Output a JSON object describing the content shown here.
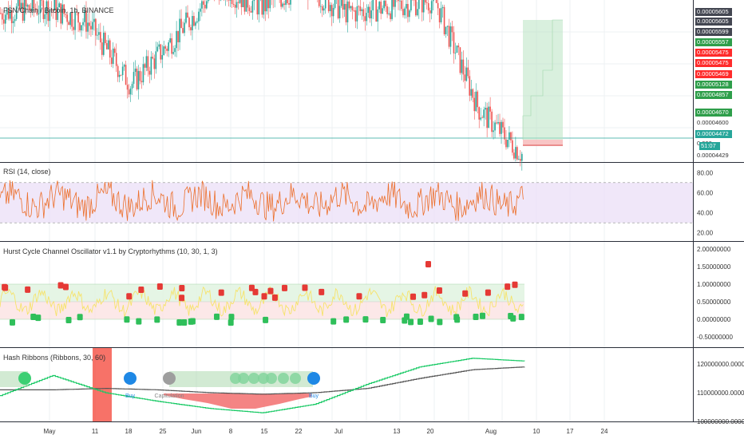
{
  "colors": {
    "bull": "#26a69a",
    "bear": "#ef5350",
    "rsi_line": "#ec6f2b",
    "rsi_band": "#e9ddf7",
    "grid": "#eef0f3",
    "separator": "#2a2e39",
    "hash_fast": "#17c964",
    "hash_slow": "#555555",
    "hash_fill": "#f26f6f",
    "buy_circle": "#1e88e5",
    "green_circle": "#3ccf73",
    "grey_circle": "#9e9e9e",
    "capitulation_red": "#f44336"
  },
  "main_pane": {
    "title": "FSN/Chain / Bitcoin, 1h, BINANCE",
    "price_tags": [
      {
        "label": "0.00005605",
        "bg": "#434651"
      },
      {
        "label": "0.00005605",
        "bg": "#434651"
      },
      {
        "label": "0.00005599",
        "bg": "#434651"
      },
      {
        "label": "0.00005557",
        "bg": "#2e9e4a"
      },
      {
        "label": "0.00005475",
        "bg": "#ff2b2b"
      },
      {
        "label": "0.00005475",
        "bg": "#ff2b2b"
      },
      {
        "label": "0.00005469",
        "bg": "#ff2b2b"
      },
      {
        "label": "0.00005128",
        "bg": "#2e9e4a"
      },
      {
        "label": "0.00004857",
        "bg": "#2e9e4a"
      },
      {
        "label": "0.00004670",
        "bg": "#2e9e4a"
      },
      {
        "label": "0.00004600",
        "bg": "#ffffff",
        "fg": "#333"
      },
      {
        "label": "0.00004472",
        "bg": "#26a69a"
      },
      {
        "label": "0.000",
        "bg": "#ffffff",
        "fg": "#333"
      },
      {
        "label": "51:07",
        "bg": "#26a69a"
      },
      {
        "label": "0.00004429",
        "bg": "#ffffff",
        "fg": "#333"
      }
    ]
  },
  "rsi_pane": {
    "title": "RSI (14, close)",
    "ticks": [
      "80.00",
      "60.00",
      "40.00",
      "20.00"
    ]
  },
  "hurst_pane": {
    "title": "Hurst Cycle Channel Oscillator v1.1 by Cryptorhythms (10, 30, 1, 3)",
    "ticks": [
      "2.00000000",
      "1.50000000",
      "1.00000000",
      "0.50000000",
      "0.00000000",
      "-0.50000000"
    ]
  },
  "hash_pane": {
    "title": "Hash Ribbons (Ribbons, 30, 60)",
    "ticks": [
      "120000000.00000000",
      "110000000.00000000",
      "100000000.00000000"
    ],
    "annotations": [
      {
        "label": "Buy"
      },
      {
        "label": "Capitulation"
      },
      {
        "label": "Buy"
      }
    ]
  },
  "x_axis": {
    "dates": [
      "May",
      "11",
      "18",
      "25",
      "Jun",
      "8",
      "15",
      "22",
      "Jul",
      "13",
      "20",
      "Aug",
      "10",
      "17",
      "24"
    ]
  },
  "chart_data": [
    {
      "type": "line",
      "title": "FSN/Chain / Bitcoin, 1h, BINANCE",
      "ylabel": "",
      "ylim": [
        4.429e-05,
        5.65e-05
      ],
      "x": [
        "May",
        "11",
        "18",
        "25",
        "Jun",
        "8",
        "15",
        "22",
        "Jul",
        "13",
        "20",
        "Aug",
        "10"
      ],
      "series": [
        {
          "values": [
            5.55e-05,
            5.6e-05,
            5.48e-05,
            5e-05,
            5.36e-05,
            5.75e-05,
            5.6e-05,
            5.75e-05,
            5.55e-05,
            5.6e-05,
            5.65e-05,
            4.82e-05,
            4.47e-05
          ]
        }
      ]
    },
    {
      "type": "line",
      "title": "RSI (14, close)",
      "ylim": [
        15,
        85
      ],
      "series": [
        {
          "values": [
            55,
            62,
            48,
            70,
            45,
            58,
            66,
            42,
            60,
            52,
            68,
            47,
            57,
            63,
            50,
            55
          ]
        }
      ]
    },
    {
      "type": "line",
      "title": "Hash Ribbons (Ribbons, 30, 60)",
      "ylim": [
        100000000,
        125000000
      ],
      "series": [
        {
          "values": [
            109000000,
            116000000,
            110000000,
            107000000,
            104500000,
            103000000,
            106000000,
            113000000,
            119000000,
            122000000,
            121000000
          ]
        },
        {
          "values": [
            111000000,
            111000000,
            111500000,
            111000000,
            110000000,
            109500000,
            110000000,
            111500000,
            115000000,
            118000000,
            119000000
          ]
        }
      ]
    }
  ]
}
